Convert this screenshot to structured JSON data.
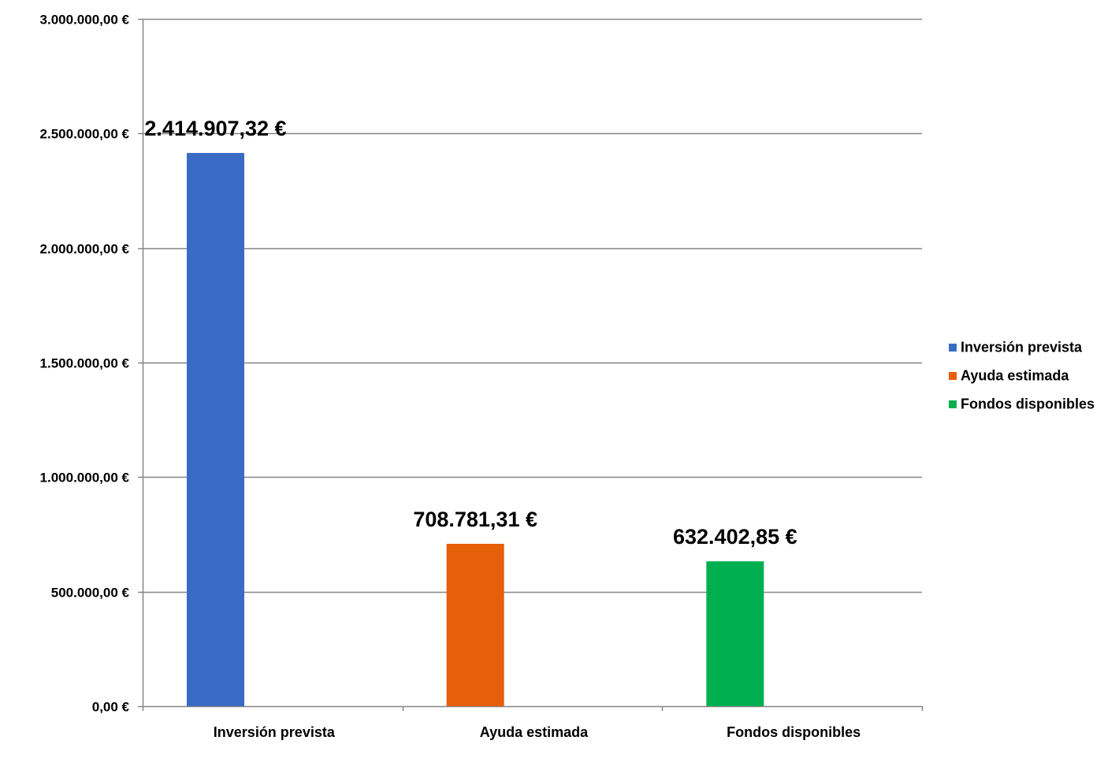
{
  "chart_data": {
    "type": "bar",
    "categories": [
      "Inversión prevista",
      "Ayuda estimada",
      "Fondos disponibles"
    ],
    "values": [
      2414907.32,
      708781.31,
      632402.85
    ],
    "data_labels": [
      "2.414.907,32 €",
      "708.781,31 €",
      "632.402,85 €"
    ],
    "colors": [
      "#3A6BC4",
      "#E65F0A",
      "#00B050"
    ],
    "ylim": [
      0,
      3000000
    ],
    "yticks": [
      {
        "value": 0,
        "label": "0,00 €"
      },
      {
        "value": 500000,
        "label": "500.000,00 €"
      },
      {
        "value": 1000000,
        "label": "1.000.000,00 €"
      },
      {
        "value": 1500000,
        "label": "1.500.000,00 €"
      },
      {
        "value": 2000000,
        "label": "2.000.000,00 €"
      },
      {
        "value": 2500000,
        "label": "2.500.000,00 €"
      },
      {
        "value": 3000000,
        "label": "3.000.000,00 €"
      }
    ],
    "grid": true,
    "legend": {
      "position": "right",
      "entries": [
        "Inversión prevista",
        "Ayuda estimada",
        "Fondos disponibles"
      ]
    },
    "title": "",
    "xlabel": "",
    "ylabel": ""
  }
}
